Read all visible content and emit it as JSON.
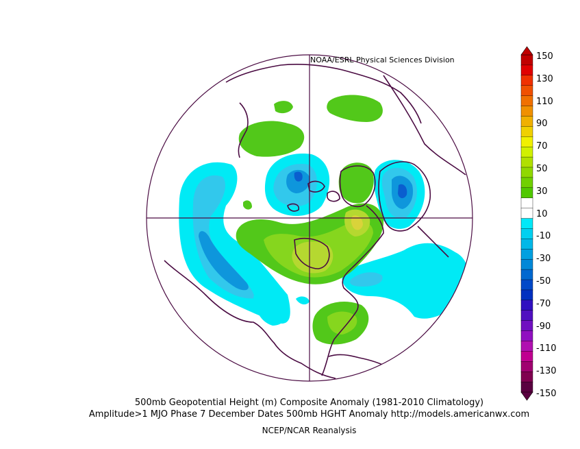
{
  "credit": "NOAA/ESRL Physical Sciences Division",
  "title_line1": "500mb Geopotential Height (m) Composite Anomaly (1981-2010 Climatology)",
  "title_line2": "Amplitude>1 MJO Phase 7 December Dates 500mb HGHT Anomaly http://models.americanwx.com",
  "source": "NCEP/NCAR Reanalysis",
  "colorbar": {
    "labels": [
      "150",
      "130",
      "110",
      "90",
      "70",
      "50",
      "30",
      "10",
      "-10",
      "-30",
      "-50",
      "-70",
      "-90",
      "-110",
      "-130",
      "-150"
    ],
    "colors": [
      "#c00000",
      "#e00000",
      "#f03000",
      "#f05000",
      "#f07000",
      "#f09000",
      "#f0b000",
      "#f0d000",
      "#f0f000",
      "#d0f000",
      "#b0e000",
      "#90d800",
      "#70d000",
      "#50c800",
      "#ffffff",
      "#ffffff",
      "#00e8f8",
      "#00d0f0",
      "#00b8e8",
      "#00a0e0",
      "#0088d8",
      "#0068d0",
      "#0048c8",
      "#0030c0",
      "#3010c0",
      "#5010c0",
      "#7010c0",
      "#9010c0",
      "#b010b0",
      "#c00090",
      "#a00070",
      "#800050",
      "#5a0040"
    ]
  },
  "colors": {
    "green": "#52c81a",
    "lightgreen": "#86d61e",
    "yellowgreen": "#b5d830",
    "yellow": "#d9d33a",
    "cyan": "#00eaf5",
    "lightblue": "#32c8ec",
    "blue": "#0e96dc",
    "darkblue": "#0a5ecf",
    "land": "#4a0b42"
  }
}
